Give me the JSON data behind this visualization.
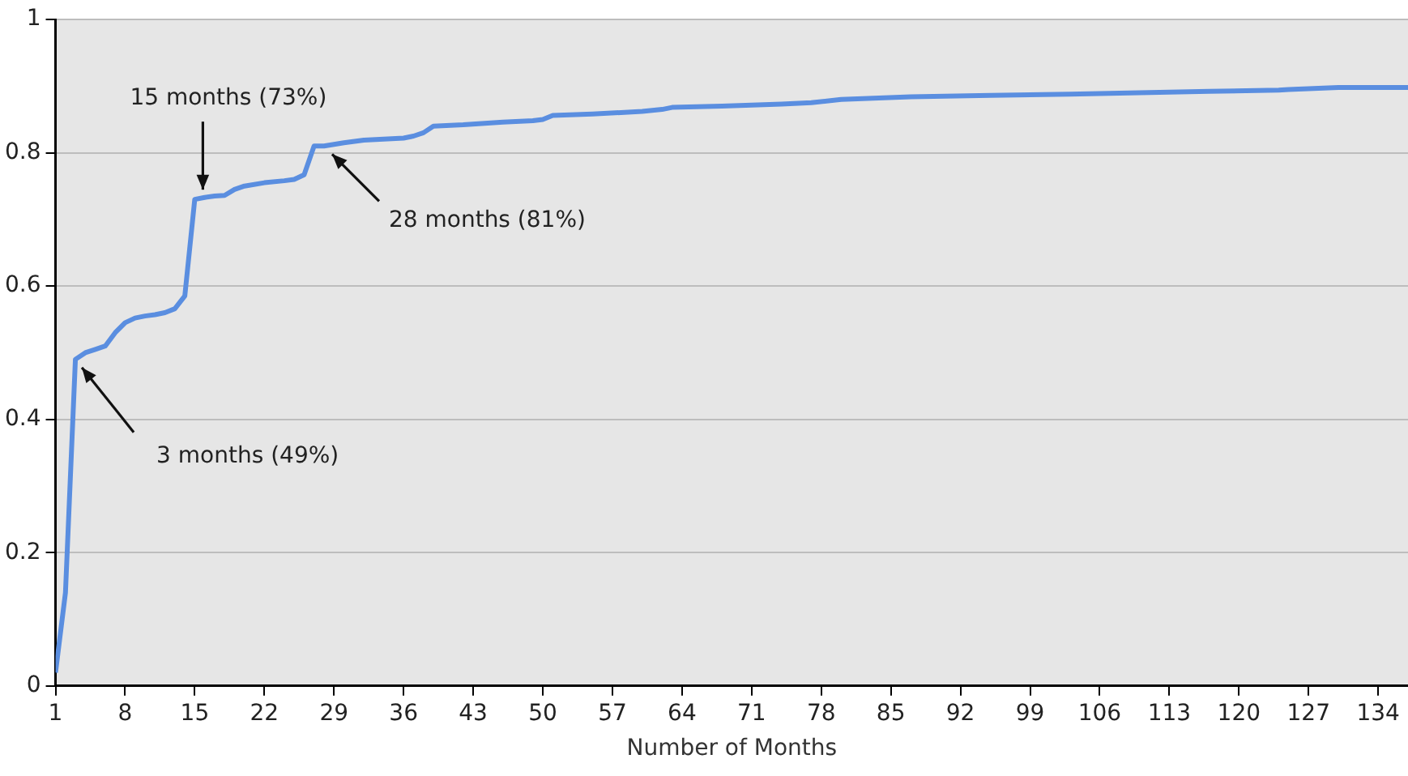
{
  "chart_data": {
    "type": "line",
    "xlabel": "Number of Months",
    "x": [
      1,
      2,
      3,
      4,
      5,
      6,
      7,
      8,
      9,
      10,
      11,
      12,
      13,
      14,
      15,
      16,
      17,
      18,
      19,
      20,
      22,
      24,
      25,
      26,
      27,
      28,
      30,
      32,
      36,
      37,
      38,
      39,
      42,
      46,
      49,
      50,
      51,
      55,
      60,
      62,
      63,
      68,
      74,
      77,
      80,
      87,
      95,
      103,
      110,
      117,
      124,
      125,
      130,
      137
    ],
    "series": [
      {
        "color": "#5a8ee0",
        "values": [
          0.02,
          0.14,
          0.49,
          0.5,
          0.505,
          0.51,
          0.53,
          0.545,
          0.552,
          0.555,
          0.557,
          0.56,
          0.566,
          0.585,
          0.73,
          0.733,
          0.735,
          0.736,
          0.745,
          0.75,
          0.755,
          0.758,
          0.76,
          0.767,
          0.81,
          0.81,
          0.815,
          0.819,
          0.822,
          0.825,
          0.83,
          0.84,
          0.842,
          0.846,
          0.848,
          0.85,
          0.856,
          0.858,
          0.862,
          0.865,
          0.868,
          0.87,
          0.873,
          0.875,
          0.88,
          0.884,
          0.886,
          0.888,
          0.89,
          0.892,
          0.894,
          0.895,
          0.898,
          0.898
        ]
      }
    ],
    "xlim": [
      1,
      137
    ],
    "xticks": [
      1,
      8,
      15,
      22,
      29,
      36,
      43,
      50,
      57,
      64,
      71,
      78,
      85,
      92,
      99,
      106,
      113,
      120,
      127,
      134
    ],
    "ylim": [
      0,
      1
    ],
    "yticks": [
      0,
      0.2,
      0.4,
      0.6,
      0.8,
      1
    ],
    "grid": "y",
    "legend": false,
    "marker": "none",
    "line_style": "solid",
    "annotations": [
      {
        "text": "15 months (73%)",
        "x": 15,
        "y": 0.73
      },
      {
        "text": "28 months (81%)",
        "x": 28,
        "y": 0.81
      },
      {
        "text": "3 months (49%)",
        "x": 3,
        "y": 0.49
      }
    ]
  }
}
